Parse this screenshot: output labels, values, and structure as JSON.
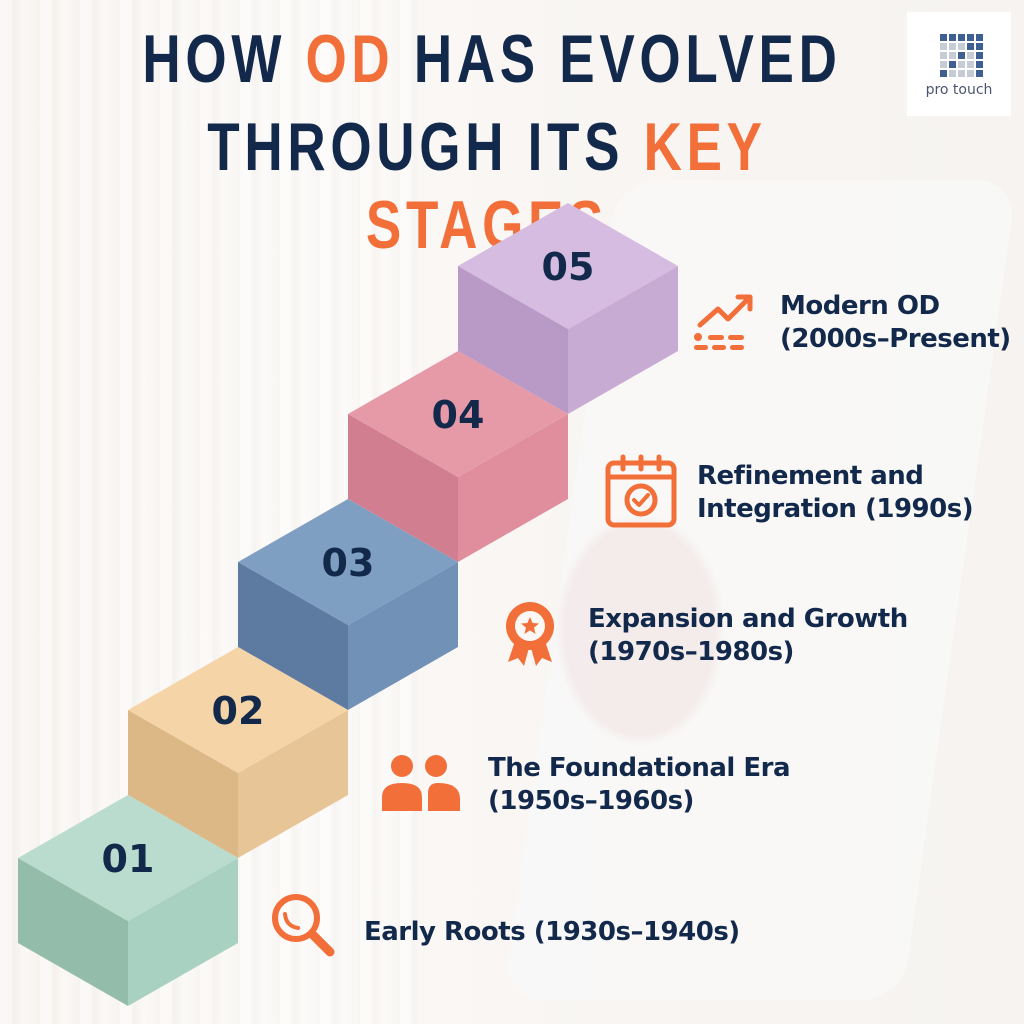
{
  "title": {
    "line1_pre": "HOW ",
    "line1_hl": "OD",
    "line1_post": " HAS EVOLVED",
    "line2_pre": "THROUGH ITS ",
    "line2_hl": "KEY STAGES"
  },
  "logo": {
    "text": "pro touch",
    "grid": [
      "D",
      "D",
      "D",
      "D",
      "D",
      "L",
      "L",
      "L",
      "D",
      "D",
      "L",
      "L",
      "D",
      "L",
      "D",
      "L",
      "D",
      "L",
      "L",
      "D",
      "D",
      "L",
      "L",
      "L",
      "D"
    ],
    "dark_color": "#3f5f92",
    "light_color": "#c5ccd6"
  },
  "colors": {
    "navy": "#13294b",
    "accent": "#f26f3a"
  },
  "stages": [
    {
      "number": "01",
      "line1": "Early Roots (1930s–1940s)",
      "line2": "",
      "icon": "magnifier-icon",
      "top": "#b9dccf",
      "left": "#94bcab",
      "right": "#a9d1c1"
    },
    {
      "number": "02",
      "line1": "The Foundational Era",
      "line2": "(1950s–1960s)",
      "icon": "people-icon",
      "top": "#f5d4a8",
      "left": "#ddb887",
      "right": "#e8c596"
    },
    {
      "number": "03",
      "line1": "Expansion and Growth",
      "line2": "(1970s–1980s)",
      "icon": "award-badge-icon",
      "top": "#7f9fc2",
      "left": "#5d7aa1",
      "right": "#7192b6"
    },
    {
      "number": "04",
      "line1": "Refinement and",
      "line2": "Integration (1990s)",
      "icon": "calendar-check-icon",
      "top": "#e69aa8",
      "left": "#d17f90",
      "right": "#e08d9d"
    },
    {
      "number": "05",
      "line1": "Modern OD",
      "line2": "(2000s–Present)",
      "icon": "growth-chart-icon",
      "top": "#d5bce0",
      "left": "#b99ac6",
      "right": "#c8abd3"
    }
  ]
}
